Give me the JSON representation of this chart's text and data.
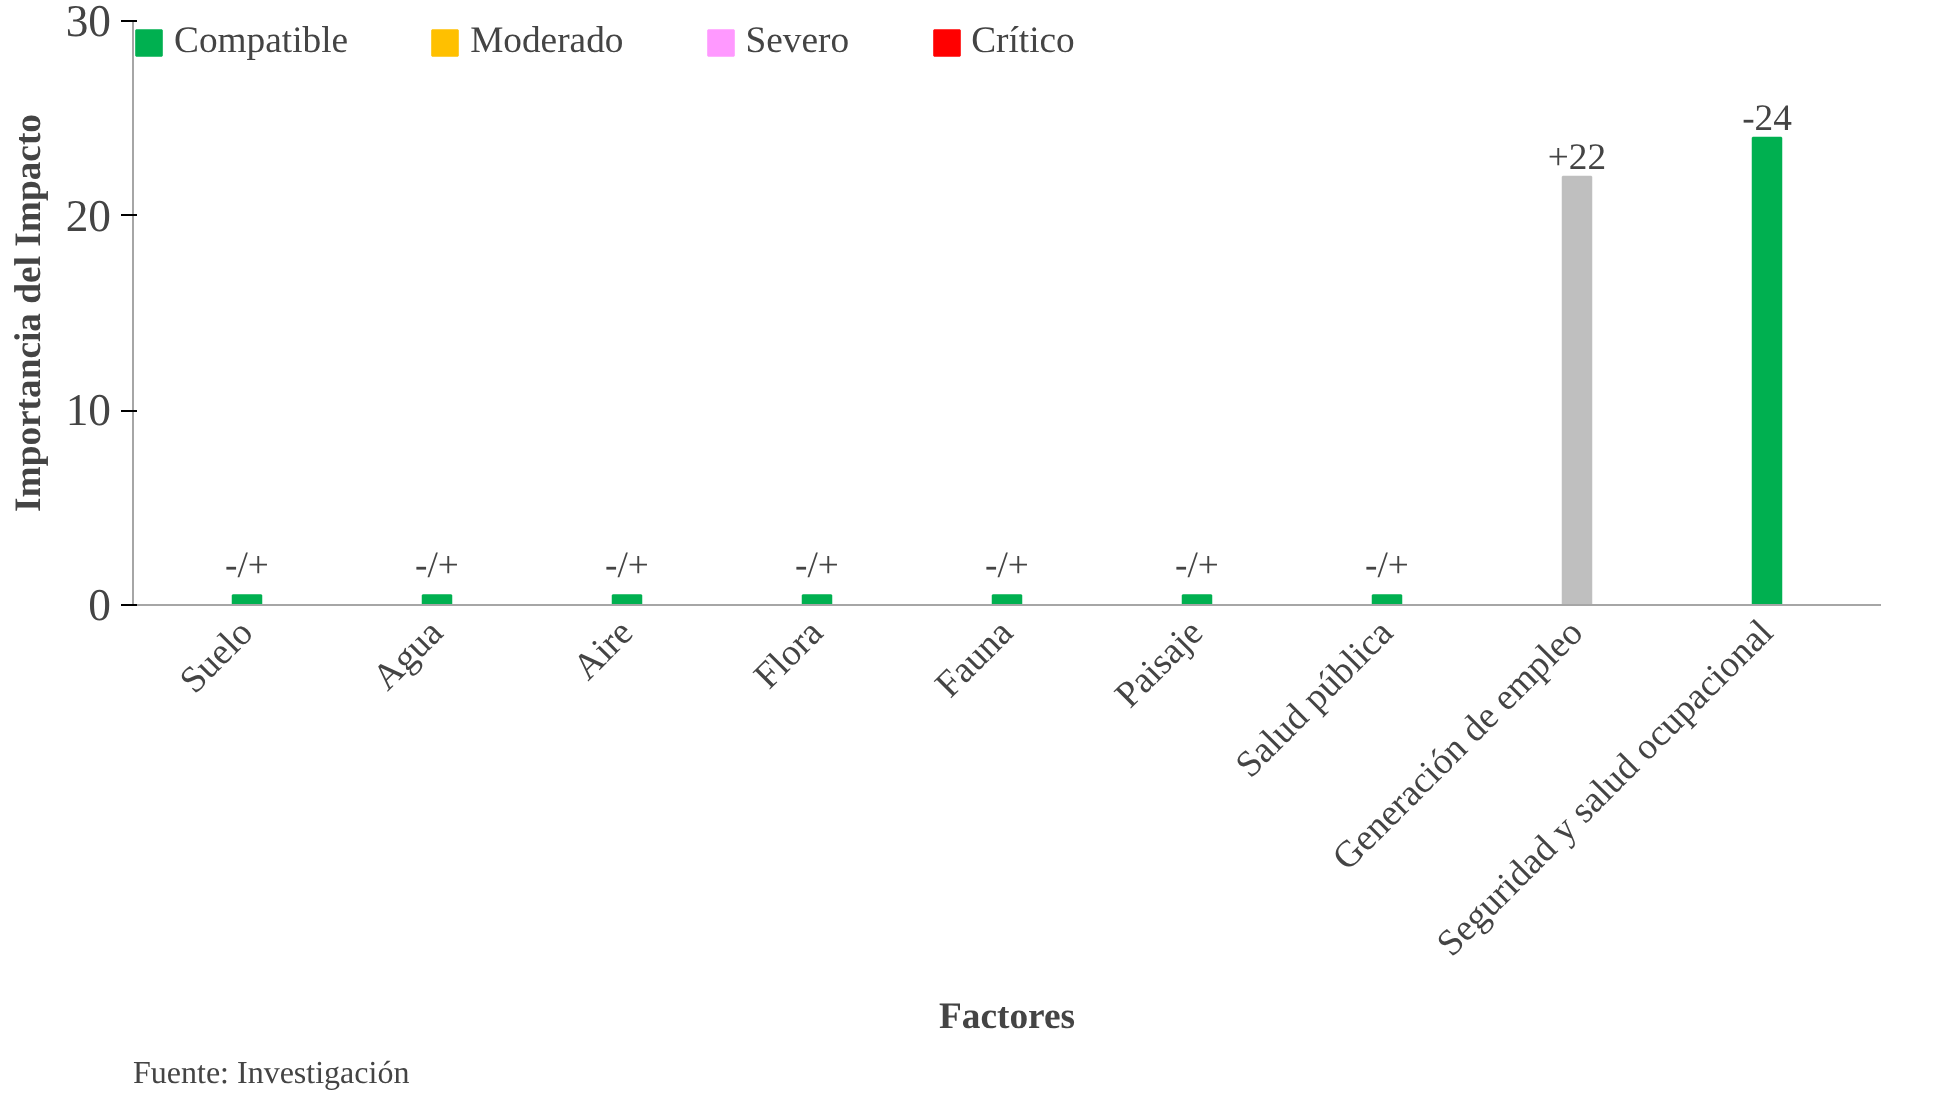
{
  "chart_data": {
    "type": "bar",
    "categories": [
      "Suelo",
      "Agua",
      "Aire",
      "Flora",
      "Fauna",
      "Paisaje",
      "Salud pública",
      "Generación de empleo",
      "Seguridad y salud ocupacional"
    ],
    "series": [
      {
        "name": "Compatible",
        "color": "#00b050",
        "values": [
          0.5,
          0.5,
          0.5,
          0.5,
          0.5,
          0.5,
          0.5,
          null,
          24
        ]
      },
      {
        "name": "Moderado",
        "color": "#ffc000",
        "values": [
          null,
          null,
          null,
          null,
          null,
          null,
          null,
          null,
          null
        ]
      },
      {
        "name": "Severo",
        "color": "#ff99ff",
        "values": [
          null,
          null,
          null,
          null,
          null,
          null,
          null,
          null,
          null
        ]
      },
      {
        "name": "Crítico",
        "color": "#ff0000",
        "values": [
          null,
          null,
          null,
          null,
          null,
          null,
          null,
          null,
          null
        ]
      },
      {
        "color": "#bfbfbf",
        "values": [
          null,
          null,
          null,
          null,
          null,
          null,
          null,
          22,
          null
        ]
      }
    ],
    "value_labels": [
      "-/+",
      "-/+",
      "-/+",
      "-/+",
      "-/+",
      "-/+",
      "-/+",
      "+22",
      "-24"
    ],
    "xlabel": "Factores",
    "ylabel": "Importancia del Impacto",
    "ylim": [
      0,
      30
    ],
    "yticks": [
      0,
      10,
      20,
      30
    ],
    "grid": false,
    "legend": "top",
    "annotations": [
      "Fuente: Investigación"
    ]
  }
}
